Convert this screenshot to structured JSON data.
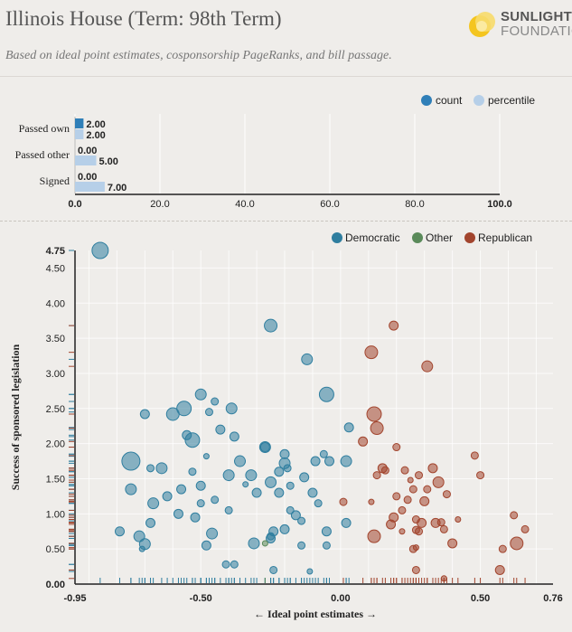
{
  "header": {
    "title": "Illinois House (Term: 98th Term)",
    "subtitle": "Based on ideal point estimates, cosponsorship PageRanks, and bill passage.",
    "logo_line1": "SUNLIGHT",
    "logo_line2": "FOUNDATION"
  },
  "colors": {
    "background": "#efedea",
    "count": "#2f7fb8",
    "percentile": "#b6cfe8",
    "democratic": "#2f7e9f",
    "other": "#5a8a5a",
    "republican": "#a2452e"
  },
  "chart_data": [
    {
      "type": "bar",
      "orientation": "horizontal",
      "categories": [
        "Passed own",
        "Passed other",
        "Signed"
      ],
      "series": [
        {
          "name": "count",
          "values": [
            2.0,
            0.0,
            0.0
          ],
          "labels": [
            "2.00",
            "0.00",
            "0.00"
          ]
        },
        {
          "name": "percentile",
          "values": [
            2.0,
            5.0,
            7.0
          ],
          "labels": [
            "2.00",
            "5.00",
            "7.00"
          ]
        }
      ],
      "legend": [
        "count",
        "percentile"
      ],
      "legend_position": "top-right",
      "xlim": [
        0,
        100
      ],
      "xticks": [
        "0.0",
        "20.0",
        "40.0",
        "60.0",
        "80.0",
        "100.0"
      ],
      "grid": true
    },
    {
      "type": "scatter",
      "xlabel": "← Ideal point estimates →",
      "ylabel": "Success of sponsored legislation",
      "xlim": [
        -0.95,
        0.76
      ],
      "ylim": [
        0,
        4.75
      ],
      "xticks": [
        "-0.95",
        "-0.50",
        "0.00",
        "0.50",
        "0.76"
      ],
      "yticks": [
        "0.00",
        "0.50",
        "1.00",
        "1.50",
        "2.00",
        "2.50",
        "3.00",
        "3.50",
        "4.00",
        "4.50",
        "4.75"
      ],
      "legend": [
        "Democratic",
        "Other",
        "Republican"
      ],
      "legend_position": "top-right",
      "grid": true,
      "series": [
        {
          "name": "Democratic",
          "points": [
            [
              -0.86,
              4.75,
              9
            ],
            [
              -0.75,
              1.75,
              10
            ],
            [
              -0.56,
              2.5,
              8
            ],
            [
              -0.53,
              2.05,
              8
            ],
            [
              -0.5,
              2.7,
              6
            ],
            [
              -0.25,
              3.68,
              7
            ],
            [
              -0.05,
              2.7,
              8
            ],
            [
              -0.12,
              3.2,
              6
            ],
            [
              -0.6,
              2.42,
              7
            ],
            [
              -0.7,
              2.42,
              5
            ],
            [
              -0.39,
              2.5,
              6
            ],
            [
              -0.43,
              2.2,
              5
            ],
            [
              -0.55,
              2.12,
              5
            ],
            [
              -0.45,
              2.6,
              4
            ],
            [
              -0.38,
              2.1,
              5
            ],
            [
              -0.36,
              1.75,
              6
            ],
            [
              -0.32,
              1.55,
              6
            ],
            [
              -0.27,
              1.95,
              6
            ],
            [
              -0.2,
              1.85,
              5
            ],
            [
              -0.2,
              1.72,
              6
            ],
            [
              -0.22,
              1.6,
              5
            ],
            [
              -0.25,
              1.45,
              6
            ],
            [
              -0.3,
              1.3,
              5
            ],
            [
              -0.4,
              1.55,
              6
            ],
            [
              -0.5,
              1.4,
              5
            ],
            [
              -0.53,
              1.6,
              4
            ],
            [
              -0.57,
              1.35,
              5
            ],
            [
              -0.64,
              1.65,
              6
            ],
            [
              -0.68,
              1.65,
              4
            ],
            [
              -0.75,
              1.35,
              6
            ],
            [
              -0.62,
              1.25,
              5
            ],
            [
              -0.67,
              1.15,
              6
            ],
            [
              -0.58,
              1.0,
              5
            ],
            [
              -0.52,
              0.95,
              5
            ],
            [
              -0.5,
              1.15,
              4
            ],
            [
              -0.45,
              1.2,
              4
            ],
            [
              -0.4,
              1.05,
              4
            ],
            [
              -0.46,
              0.72,
              6
            ],
            [
              -0.48,
              0.55,
              5
            ],
            [
              -0.31,
              0.58,
              6
            ],
            [
              -0.25,
              0.65,
              5
            ],
            [
              -0.24,
              0.75,
              5
            ],
            [
              -0.2,
              0.78,
              5
            ],
            [
              -0.18,
              1.05,
              4
            ],
            [
              -0.16,
              0.98,
              5
            ],
            [
              -0.14,
              0.55,
              4
            ],
            [
              -0.22,
              1.3,
              5
            ],
            [
              -0.18,
              1.4,
              4
            ],
            [
              -0.13,
              1.52,
              5
            ],
            [
              -0.09,
              1.75,
              5
            ],
            [
              -0.06,
              1.85,
              4
            ],
            [
              -0.04,
              1.75,
              5
            ],
            [
              -0.1,
              1.3,
              5
            ],
            [
              -0.08,
              1.15,
              4
            ],
            [
              -0.05,
              0.75,
              5
            ],
            [
              -0.05,
              0.55,
              4
            ],
            [
              0.03,
              2.23,
              5
            ],
            [
              0.02,
              1.75,
              6
            ],
            [
              0.02,
              0.87,
              5
            ],
            [
              -0.72,
              0.68,
              6
            ],
            [
              -0.7,
              0.57,
              6
            ],
            [
              -0.79,
              0.75,
              5
            ],
            [
              -0.68,
              0.87,
              5
            ],
            [
              -0.41,
              0.28,
              4
            ],
            [
              -0.38,
              0.28,
              4
            ],
            [
              -0.24,
              0.2,
              4
            ],
            [
              -0.11,
              0.18,
              3
            ],
            [
              -0.27,
              1.95,
              5
            ],
            [
              -0.25,
              0.68,
              4
            ],
            [
              -0.71,
              0.5,
              3
            ],
            [
              -0.47,
              2.45,
              4
            ],
            [
              -0.48,
              1.82,
              3
            ],
            [
              -0.19,
              1.65,
              4
            ],
            [
              -0.14,
              0.9,
              4
            ],
            [
              -0.34,
              1.42,
              3
            ]
          ]
        },
        {
          "name": "Other",
          "points": [
            [
              -0.27,
              0.58,
              3
            ]
          ]
        },
        {
          "name": "Republican",
          "points": [
            [
              0.19,
              3.68,
              5
            ],
            [
              0.11,
              3.3,
              7
            ],
            [
              0.31,
              3.1,
              6
            ],
            [
              0.12,
              2.42,
              8
            ],
            [
              0.13,
              2.22,
              7
            ],
            [
              0.08,
              2.03,
              5
            ],
            [
              0.2,
              1.95,
              4
            ],
            [
              0.15,
              1.65,
              5
            ],
            [
              0.16,
              1.62,
              4
            ],
            [
              0.13,
              1.55,
              4
            ],
            [
              0.23,
              1.62,
              4
            ],
            [
              0.28,
              1.55,
              4
            ],
            [
              0.33,
              1.65,
              5
            ],
            [
              0.35,
              1.45,
              6
            ],
            [
              0.26,
              1.35,
              4
            ],
            [
              0.31,
              1.35,
              4
            ],
            [
              0.38,
              1.28,
              4
            ],
            [
              0.3,
              1.18,
              5
            ],
            [
              0.24,
              1.2,
              4
            ],
            [
              0.22,
              1.05,
              4
            ],
            [
              0.19,
              0.95,
              5
            ],
            [
              0.27,
              0.92,
              4
            ],
            [
              0.29,
              0.87,
              5
            ],
            [
              0.34,
              0.87,
              5
            ],
            [
              0.36,
              0.88,
              4
            ],
            [
              0.27,
              0.77,
              4
            ],
            [
              0.28,
              0.75,
              4
            ],
            [
              0.37,
              0.78,
              4
            ],
            [
              0.12,
              0.68,
              7
            ],
            [
              0.26,
              0.5,
              4
            ],
            [
              0.27,
              0.52,
              3
            ],
            [
              0.4,
              0.58,
              5
            ],
            [
              0.48,
              1.83,
              4
            ],
            [
              0.5,
              1.55,
              4
            ],
            [
              0.62,
              0.98,
              4
            ],
            [
              0.66,
              0.78,
              4
            ],
            [
              0.58,
              0.5,
              4
            ],
            [
              0.63,
              0.58,
              7
            ],
            [
              0.57,
              0.2,
              5
            ],
            [
              0.27,
              0.2,
              4
            ],
            [
              0.01,
              1.17,
              4
            ],
            [
              0.11,
              1.17,
              3
            ],
            [
              0.2,
              1.25,
              4
            ],
            [
              0.18,
              0.85,
              5
            ],
            [
              0.22,
              0.75,
              3
            ],
            [
              0.37,
              0.08,
              3
            ],
            [
              0.25,
              1.48,
              3
            ],
            [
              0.42,
              0.92,
              3
            ]
          ]
        }
      ]
    }
  ]
}
